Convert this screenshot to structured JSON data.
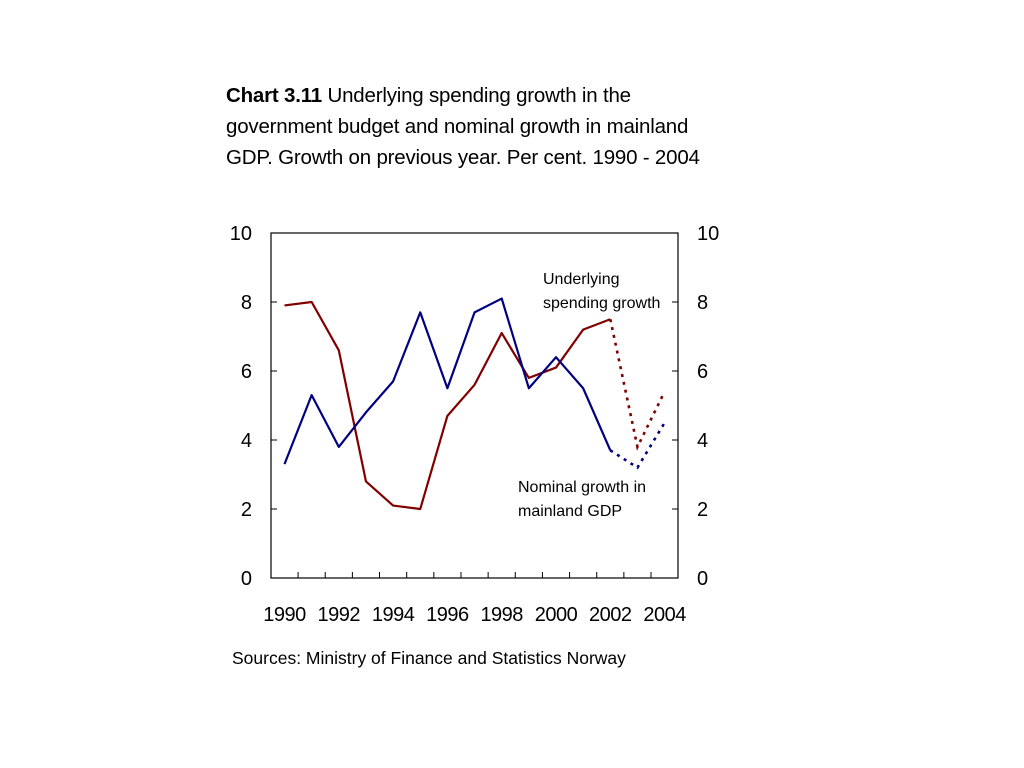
{
  "chart_data": {
    "type": "line",
    "title_label": "Chart 3.11",
    "title": "Underlying spending growth in the government budget and nominal growth in mainland GDP. Growth on previous year. Per cent. 1990 - 2004",
    "source": "Sources: Ministry of Finance and Statistics Norway",
    "ylim": [
      0,
      10
    ],
    "yticks": [
      0,
      2,
      4,
      6,
      8,
      10
    ],
    "xlim": [
      1989.5,
      2004.5
    ],
    "xticks": [
      1990,
      1992,
      1994,
      1996,
      1998,
      2000,
      2002,
      2004
    ],
    "grid": false,
    "colors": {
      "spending": "#800000",
      "gdp": "#000080"
    },
    "series": [
      {
        "name": "Underlying spending growth",
        "label_lines": [
          "Underlying",
          "spending growth"
        ],
        "color": "#800000",
        "x": [
          1990,
          1991,
          1992,
          1993,
          1994,
          1995,
          1996,
          1997,
          1998,
          1999,
          2000,
          2001,
          2002
        ],
        "values": [
          7.9,
          8.0,
          6.6,
          2.8,
          2.1,
          2.0,
          4.7,
          5.6,
          7.1,
          5.8,
          6.1,
          7.2,
          7.5
        ],
        "projection_x": [
          2002,
          2003,
          2004
        ],
        "projection_values": [
          7.5,
          3.8,
          5.4
        ]
      },
      {
        "name": "Nominal growth in mainland GDP",
        "label_lines": [
          "Nominal growth in",
          "mainland GDP"
        ],
        "color": "#000080",
        "x": [
          1990,
          1991,
          1992,
          1993,
          1994,
          1995,
          1996,
          1997,
          1998,
          1999,
          2000,
          2001,
          2002
        ],
        "values": [
          3.3,
          5.3,
          3.8,
          4.8,
          5.7,
          7.7,
          5.5,
          7.7,
          8.1,
          5.5,
          6.4,
          5.5,
          3.7
        ],
        "projection_x": [
          2002,
          2003,
          2004
        ],
        "projection_values": [
          3.7,
          3.2,
          4.5
        ]
      }
    ]
  }
}
